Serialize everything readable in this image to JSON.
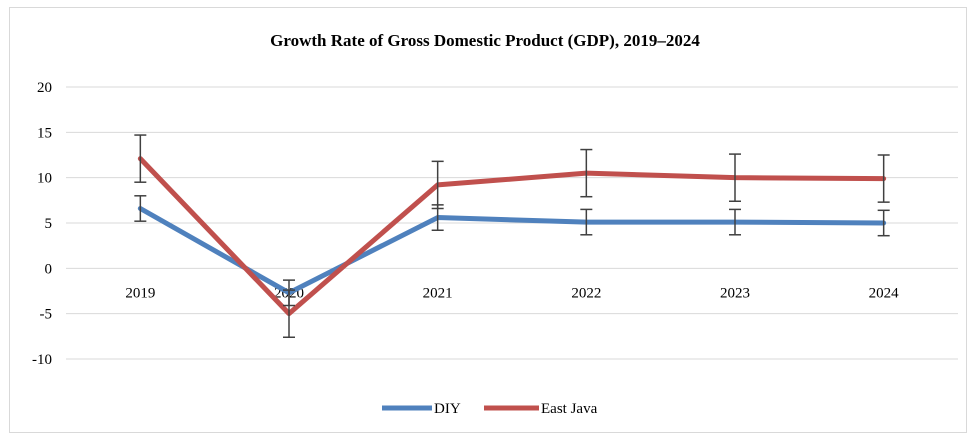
{
  "chart_data": {
    "type": "line",
    "title": "Growth Rate of Gross Domestic Product (GDP), 2019–2024",
    "xlabel": "",
    "ylabel": "",
    "categories": [
      "2019",
      "2020",
      "2021",
      "2022",
      "2023",
      "2024"
    ],
    "ylim": [
      -10,
      20
    ],
    "yticks": [
      20,
      15,
      10,
      5,
      0,
      -5,
      -10
    ],
    "grid": true,
    "legend": "bottom",
    "error_bars": true,
    "series": [
      {
        "name": "DIY",
        "color": "#4f81bd",
        "values": [
          6.6,
          -2.7,
          5.6,
          5.1,
          5.1,
          5.0
        ],
        "error": [
          1.4,
          1.4,
          1.4,
          1.4,
          1.4,
          1.4
        ]
      },
      {
        "name": "East Java",
        "color": "#c0504d",
        "values": [
          12.1,
          -5.0,
          9.2,
          10.5,
          10.0,
          9.9
        ],
        "error": [
          2.6,
          2.6,
          2.6,
          2.6,
          2.6,
          2.6
        ]
      }
    ]
  }
}
